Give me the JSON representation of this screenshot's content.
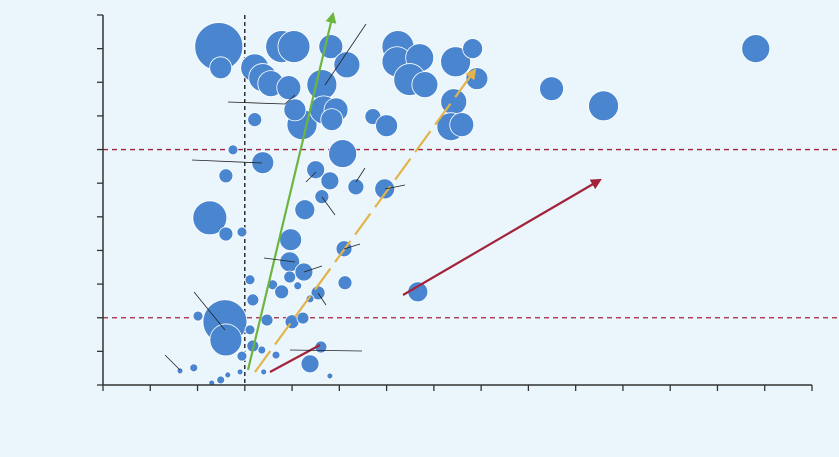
{
  "chart_data": {
    "type": "bubble",
    "color": "#4a86cf",
    "xlim": [
      0,
      15
    ],
    "ylim": [
      0,
      11
    ],
    "xticks": [
      0,
      1,
      2,
      3,
      4,
      5,
      6,
      7,
      8,
      9,
      10,
      11,
      12,
      13,
      14,
      15
    ],
    "yticks": [
      0,
      1,
      2,
      3,
      4,
      5,
      6,
      7,
      8,
      9,
      10,
      11
    ],
    "hlines": [
      2,
      7
    ],
    "vline": 3,
    "x": [
      2.45,
      2.49,
      3.21,
      3.38,
      3.55,
      3.78,
      4.04,
      3.93,
      4.82,
      5.16,
      4.63,
      6.24,
      6.22,
      6.7,
      6.49,
      6.81,
      7.46,
      7.82,
      7.91,
      7.42,
      7.36,
      7.59,
      4.21,
      4.06,
      4.67,
      4.93,
      4.84,
      5.71,
      6.0,
      3.21,
      9.49,
      10.59,
      13.81,
      5.07,
      3.38,
      2.75,
      2.6,
      4.5,
      4.8,
      5.35,
      5.96,
      4.63,
      4.27,
      2.26,
      2.6,
      2.94,
      3.97,
      5.1,
      3.95,
      4.25,
      3.95,
      3.11,
      3.59,
      4.12,
      4.55,
      5.12,
      4.38,
      3.78,
      3.17,
      6.66,
      2.01,
      2.58,
      2.6,
      3.47,
      4.0,
      4.23,
      3.11,
      3.36,
      3.17,
      3.66,
      4.61,
      4.38,
      2.94,
      1.92,
      1.63,
      2.49,
      2.3,
      2.64,
      4.8,
      3.4,
      2.9
    ],
    "values": [
      10.06,
      9.43,
      9.43,
      9.14,
      8.96,
      10.06,
      10.06,
      8.84,
      10.06,
      9.52,
      8.93,
      10.06,
      9.61,
      9.73,
      9.08,
      8.93,
      9.61,
      10.0,
      9.11,
      8.42,
      7.68,
      7.74,
      7.74,
      8.18,
      8.18,
      8.18,
      7.89,
      7.98,
      7.71,
      7.89,
      8.81,
      8.3,
      10.0,
      6.88,
      6.61,
      6.99,
      6.22,
      6.4,
      6.07,
      5.89,
      5.83,
      5.6,
      5.21,
      4.97,
      4.49,
      4.55,
      4.32,
      4.05,
      3.66,
      3.36,
      3.21,
      3.13,
      2.98,
      2.95,
      2.74,
      3.04,
      2.56,
      2.77,
      2.53,
      2.77,
      2.05,
      1.88,
      1.34,
      1.93,
      1.88,
      1.99,
      1.64,
      1.04,
      1.16,
      0.89,
      1.13,
      0.63,
      0.86,
      0.51,
      0.42,
      0.15,
      0.06,
      0.3,
      0.27,
      0.39,
      0.39
    ],
    "sizes": [
      24,
      11,
      14,
      14,
      13,
      16,
      16,
      12,
      12,
      13,
      15,
      16,
      15,
      14,
      16,
      13,
      15,
      10,
      11,
      13,
      14,
      12,
      15,
      11,
      14,
      12,
      11,
      8,
      11,
      7,
      12,
      15,
      14,
      14,
      11,
      5,
      7,
      9,
      9,
      8,
      10,
      7,
      10,
      17,
      7,
      5,
      11,
      8,
      10,
      9,
      6,
      5,
      5,
      4,
      7,
      7,
      4,
      7,
      6,
      10,
      5,
      22,
      16,
      6,
      7,
      6,
      5,
      4,
      6,
      4,
      6,
      9,
      5,
      4,
      3,
      4,
      3,
      3,
      3,
      3,
      3
    ]
  }
}
